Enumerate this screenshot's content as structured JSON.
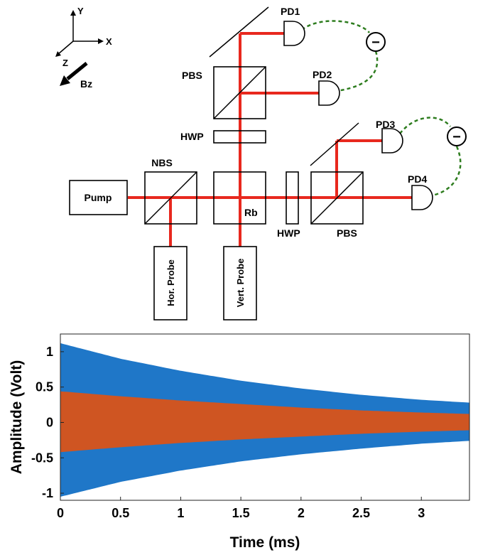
{
  "diagram": {
    "axes": {
      "y": "Y",
      "x": "X",
      "z": "Z",
      "field": "Bz"
    },
    "components": {
      "pump": "Pump",
      "nbs": "NBS",
      "rb": "Rb",
      "hwp_top": "HWP",
      "hwp_right": "HWP",
      "pbs_top": "PBS",
      "pbs_right": "PBS",
      "hor_probe": "Hor. Probe",
      "vert_probe": "Vert. Probe",
      "pd1": "PD1",
      "pd2": "PD2",
      "pd3": "PD3",
      "pd4": "PD4",
      "subtractor_symbol": "−"
    },
    "colors": {
      "beam": "#e8281e",
      "wire": "#2e7d1f"
    }
  },
  "chart_data": {
    "type": "area",
    "title": "",
    "xlabel": "Time (ms)",
    "ylabel": "Amplitude (Volt)",
    "xlim": [
      0,
      3.4
    ],
    "ylim": [
      -1.1,
      1.25
    ],
    "xticks": [
      0,
      0.5,
      1,
      1.5,
      2,
      2.5,
      3
    ],
    "xtick_labels": [
      "0",
      "0.5",
      "1",
      "1.5",
      "2",
      "2.5",
      "3"
    ],
    "yticks": [
      1,
      0.5,
      0,
      -0.5,
      -1
    ],
    "ytick_labels": [
      "1",
      "0.5",
      "0",
      "-0.5",
      "-1"
    ],
    "x": [
      0,
      0.5,
      1,
      1.5,
      2,
      2.5,
      3,
      3.4
    ],
    "series": [
      {
        "name": "blue",
        "color": "#1f77c8",
        "upper": [
          1.12,
          0.9,
          0.73,
          0.59,
          0.48,
          0.39,
          0.32,
          0.28
        ],
        "lower": [
          -1.05,
          -0.84,
          -0.68,
          -0.55,
          -0.45,
          -0.37,
          -0.3,
          -0.26
        ]
      },
      {
        "name": "orange",
        "color": "#d95319",
        "upper": [
          0.44,
          0.37,
          0.31,
          0.26,
          0.21,
          0.17,
          0.14,
          0.12
        ],
        "lower": [
          -0.42,
          -0.35,
          -0.29,
          -0.24,
          -0.2,
          -0.16,
          -0.13,
          -0.11
        ]
      }
    ]
  }
}
